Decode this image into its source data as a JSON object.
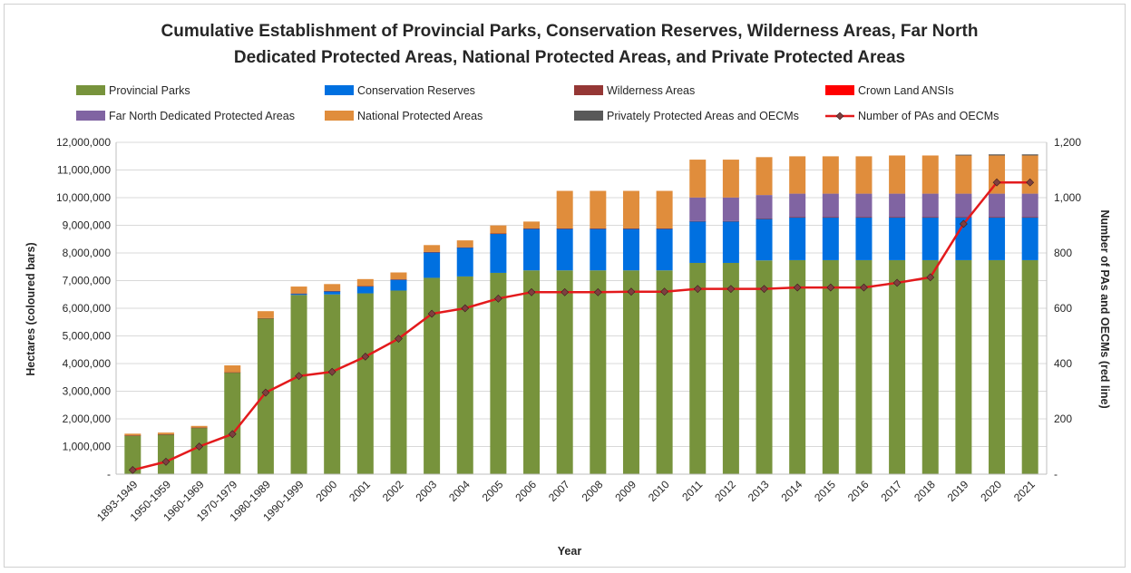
{
  "chart_data": {
    "type": "bar",
    "stacked": true,
    "title_lines": [
      "Cumulative Establishment of Provincial Parks, Conservation Reserves, Wilderness Areas, Far North",
      "Dedicated Protected Areas, National Protected Areas, and Private Protected Areas"
    ],
    "xlabel": "Year",
    "ylabel": "Hectares (coloured bars)",
    "y2label": "Number of PAs and OECMs (red line)",
    "ylim": [
      0,
      12000000
    ],
    "y2lim": [
      0,
      1200
    ],
    "yticks": [
      "-",
      "1,000,000",
      "2,000,000",
      "3,000,000",
      "4,000,000",
      "5,000,000",
      "6,000,000",
      "7,000,000",
      "8,000,000",
      "9,000,000",
      "10,000,000",
      "11,000,000",
      "12,000,000"
    ],
    "y2ticks": [
      "-",
      "200",
      "400",
      "600",
      "800",
      "1,000",
      "1,200"
    ],
    "grid": true,
    "legend_position": "top",
    "categories": [
      "1893-1949",
      "1950-1959",
      "1960-1969",
      "1970-1979",
      "1980-1989",
      "1990-1999",
      "2000",
      "2001",
      "2002",
      "2003",
      "2004",
      "2005",
      "2006",
      "2007",
      "2008",
      "2009",
      "2010",
      "2011",
      "2012",
      "2013",
      "2014",
      "2015",
      "2016",
      "2017",
      "2018",
      "2019",
      "2020",
      "2021"
    ],
    "series": [
      {
        "name": "Provincial Parks",
        "color": "#77933c",
        "values": [
          1400000,
          1440000,
          1680000,
          3680000,
          5640000,
          6480000,
          6500000,
          6540000,
          6640000,
          7100000,
          7150000,
          7280000,
          7370000,
          7370000,
          7370000,
          7370000,
          7370000,
          7640000,
          7640000,
          7730000,
          7740000,
          7740000,
          7740000,
          7740000,
          7740000,
          7740000,
          7740000,
          7740000
        ]
      },
      {
        "name": "Conservation Reserves",
        "color": "#0070e0",
        "values": [
          0,
          0,
          0,
          0,
          0,
          50000,
          120000,
          260000,
          400000,
          930000,
          1050000,
          1420000,
          1510000,
          1510000,
          1510000,
          1510000,
          1510000,
          1510000,
          1510000,
          1510000,
          1550000,
          1550000,
          1550000,
          1550000,
          1550000,
          1550000,
          1550000,
          1550000
        ]
      },
      {
        "name": "Wilderness Areas",
        "color": "#953735",
        "values": [
          5000,
          5000,
          5000,
          5000,
          5000,
          5000,
          5000,
          5000,
          5000,
          5000,
          5000,
          5000,
          5000,
          5000,
          5000,
          5000,
          5000,
          5000,
          5000,
          5000,
          5000,
          5000,
          5000,
          5000,
          5000,
          5000,
          5000,
          5000
        ]
      },
      {
        "name": "Crown Land ANSIs",
        "color": "#ff0000",
        "values": [
          0,
          0,
          0,
          0,
          0,
          0,
          0,
          0,
          0,
          0,
          0,
          0,
          0,
          0,
          0,
          0,
          0,
          0,
          0,
          0,
          0,
          0,
          0,
          0,
          0,
          0,
          0,
          0
        ]
      },
      {
        "name": "Far North Dedicated Protected Areas",
        "color": "#8064a2",
        "values": [
          0,
          0,
          0,
          0,
          0,
          0,
          0,
          0,
          0,
          0,
          0,
          0,
          0,
          0,
          0,
          0,
          0,
          850000,
          850000,
          850000,
          850000,
          850000,
          850000,
          850000,
          850000,
          850000,
          850000,
          850000
        ]
      },
      {
        "name": "National Protected Areas",
        "color": "#e08d3c",
        "values": [
          60000,
          60000,
          60000,
          250000,
          250000,
          250000,
          250000,
          250000,
          250000,
          250000,
          250000,
          290000,
          250000,
          1360000,
          1360000,
          1360000,
          1360000,
          1370000,
          1370000,
          1370000,
          1350000,
          1350000,
          1350000,
          1380000,
          1380000,
          1380000,
          1380000,
          1380000
        ]
      },
      {
        "name": "Privately Protected Areas and OECMs",
        "color": "#595959",
        "values": [
          0,
          0,
          0,
          0,
          0,
          0,
          0,
          0,
          0,
          0,
          0,
          0,
          0,
          0,
          0,
          0,
          0,
          0,
          0,
          0,
          0,
          0,
          0,
          0,
          0,
          30000,
          40000,
          40000
        ]
      }
    ],
    "line_series": {
      "name": "Number of PAs and OECMs",
      "color": "#e31a1c",
      "marker_color": "#7f3f3f",
      "axis": "secondary",
      "values": [
        15,
        45,
        100,
        145,
        295,
        355,
        370,
        425,
        490,
        580,
        600,
        635,
        658,
        658,
        658,
        660,
        660,
        670,
        670,
        670,
        675,
        675,
        675,
        692,
        712,
        905,
        1055,
        1055
      ]
    }
  }
}
